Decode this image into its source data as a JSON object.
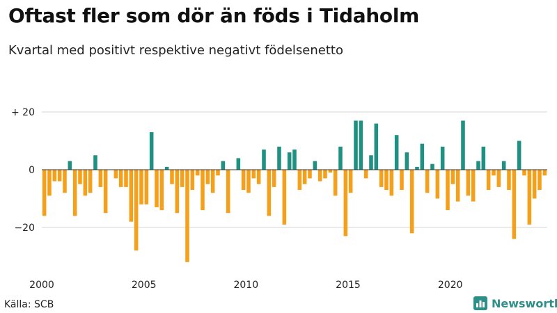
{
  "chart_data": {
    "type": "bar",
    "title": "Oftast fler som dör än föds i Tidaholm",
    "subtitle": "Kvartal med positivt respektive negativt födelsenetto",
    "xlabel": "",
    "ylabel": "",
    "start_year": 2000,
    "ylim": [
      -34,
      24
    ],
    "yticks": [
      {
        "value": 20,
        "label": "+ 20"
      },
      {
        "value": 0,
        "label": "0"
      },
      {
        "value": -20,
        "label": "−20"
      }
    ],
    "xticks": [
      {
        "year": 2000,
        "label": "2000"
      },
      {
        "year": 2005,
        "label": "2005"
      },
      {
        "year": 2010,
        "label": "2010"
      },
      {
        "year": 2015,
        "label": "2015"
      },
      {
        "year": 2020,
        "label": "2020"
      }
    ],
    "colors": {
      "positive": "#1f9183",
      "negative": "#f5a01a"
    },
    "values": [
      -16,
      -9,
      -4,
      -4,
      -8,
      3,
      -16,
      -5,
      -9,
      -8,
      5,
      -6,
      -15,
      0,
      -3,
      -6,
      -6,
      -18,
      -28,
      -12,
      -12,
      13,
      -13,
      -14,
      1,
      -5,
      -15,
      -6,
      -32,
      -7,
      -2,
      -14,
      -5,
      -8,
      -2,
      3,
      -15,
      0,
      4,
      -7,
      -8,
      -3,
      -5,
      7,
      -16,
      -6,
      8,
      -19,
      6,
      7,
      -7,
      -5,
      -3,
      3,
      -4,
      -3,
      -1,
      -9,
      8,
      -23,
      -8,
      17,
      17,
      -3,
      5,
      16,
      -6,
      -7,
      -9,
      12,
      -7,
      6,
      -22,
      1,
      9,
      -8,
      2,
      -10,
      8,
      -14,
      -5,
      -11,
      17,
      -9,
      -11,
      3,
      8,
      -7,
      -2,
      -6,
      3,
      -7,
      -24,
      10,
      -2,
      -19,
      -10,
      -7,
      -2
    ]
  },
  "footer": {
    "source": "Källa: SCB",
    "brand": "Newsworthy"
  }
}
